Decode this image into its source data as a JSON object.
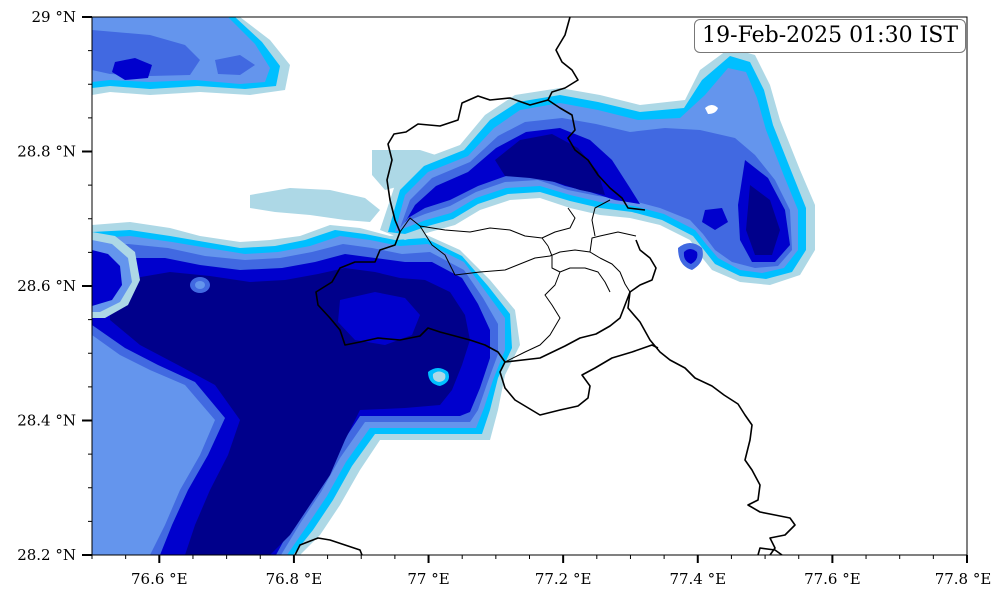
{
  "map": {
    "timestamp": "19-Feb-2025 01:30 IST",
    "x_ticks": [
      "76.6 °E",
      "76.8 °E",
      "77 °E",
      "77.2 °E",
      "77.4 °E",
      "77.6 °E",
      "77.8 °E"
    ],
    "y_ticks": [
      "29 °N",
      "28.8 °N",
      "28.6 °N",
      "28.4 °N",
      "28.2 °N"
    ],
    "extent": {
      "lon": [
        76.5,
        77.8
      ],
      "lat": [
        28.2,
        29.0
      ]
    },
    "fill_colors": [
      "#add8e6",
      "#00bfff",
      "#6495ed",
      "#4169e1",
      "#0000cd",
      "#00008b"
    ]
  }
}
